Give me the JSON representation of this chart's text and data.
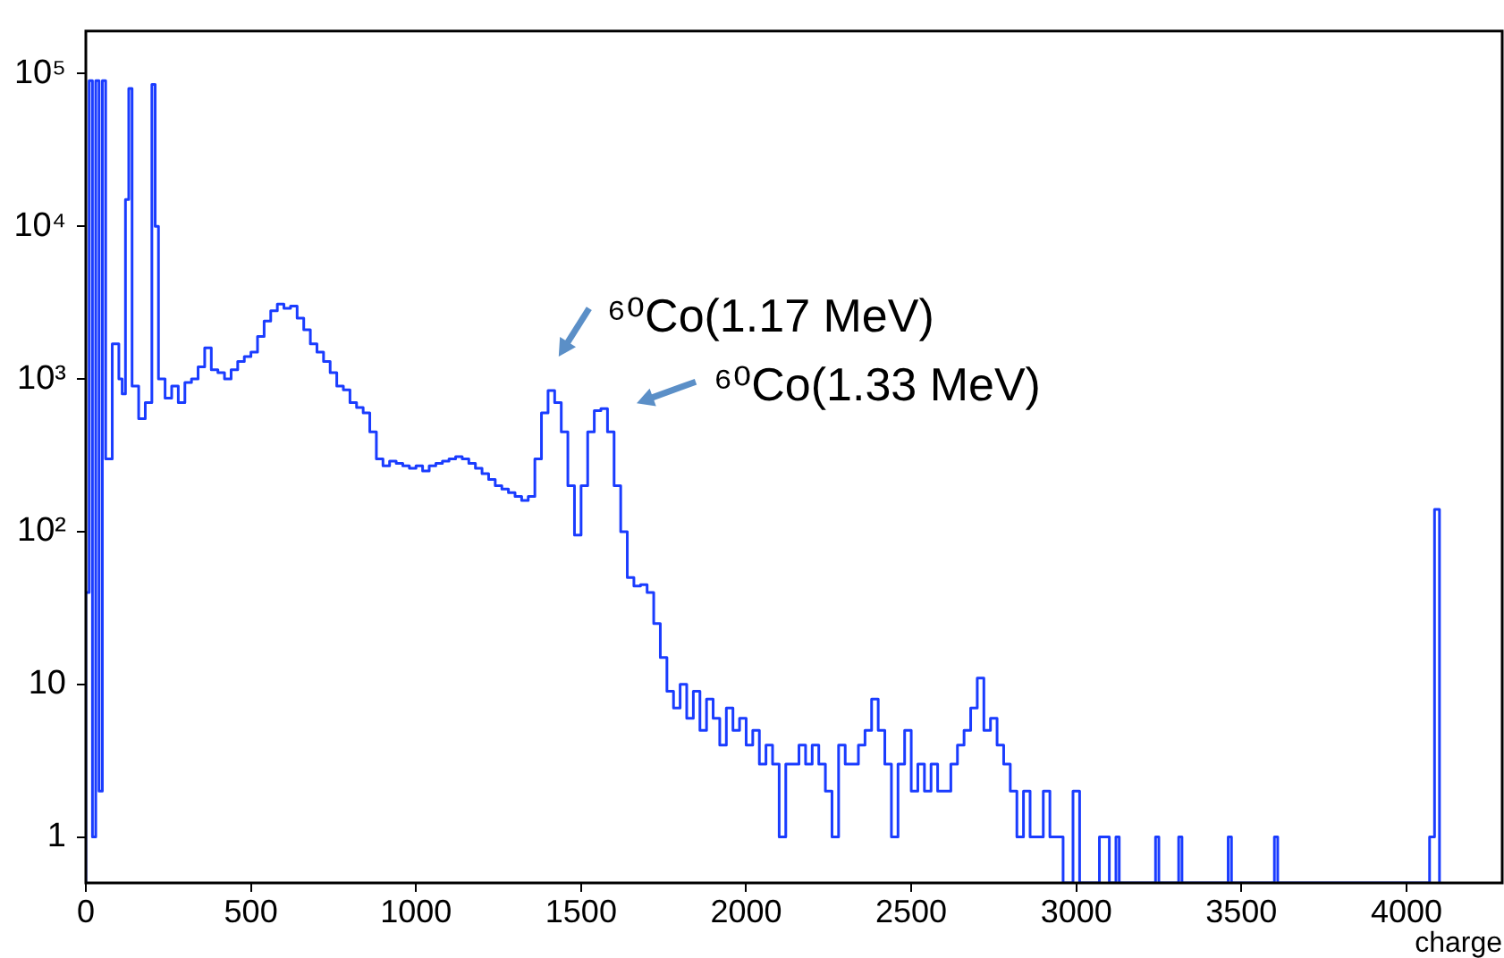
{
  "chart_data": {
    "type": "histogram",
    "xlabel": "charge",
    "color": "#1a3cff",
    "bins": [
      0,
      10,
      20,
      30,
      40,
      50,
      60,
      80,
      100,
      110,
      120,
      130,
      140,
      160,
      180,
      200,
      210,
      220,
      240,
      260,
      280,
      300,
      320,
      340,
      360,
      380,
      400,
      420,
      440,
      460,
      480,
      500,
      520,
      540,
      560,
      580,
      600,
      620,
      640,
      660,
      680,
      700,
      720,
      740,
      760,
      780,
      800,
      820,
      840,
      860,
      880,
      900,
      920,
      940,
      960,
      980,
      1000,
      1020,
      1040,
      1060,
      1080,
      1100,
      1120,
      1140,
      1160,
      1180,
      1200,
      1220,
      1240,
      1260,
      1280,
      1300,
      1320,
      1340,
      1360,
      1380,
      1400,
      1420,
      1440,
      1460,
      1480,
      1500,
      1520,
      1540,
      1560,
      1580,
      1600,
      1620,
      1640,
      1660,
      1680,
      1700,
      1720,
      1740,
      1760,
      1780,
      1800,
      1820,
      1840,
      1860,
      1880,
      1900,
      1920,
      1940,
      1960,
      1980,
      2000,
      2020,
      2040,
      2060,
      2080,
      2100,
      2120,
      2140,
      2160,
      2180,
      2200,
      2220,
      2240,
      2260,
      2280,
      2300,
      2320,
      2340,
      2360,
      2380,
      2400,
      2420,
      2440,
      2460,
      2480,
      2500,
      2520,
      2540,
      2560,
      2580,
      2600,
      2620,
      2640,
      2660,
      2680,
      2700,
      2720,
      2740,
      2760,
      2780,
      2800,
      2820,
      2840,
      2860,
      2880,
      2900,
      2920,
      2940,
      2960,
      2990,
      3010,
      3070,
      3090,
      3100,
      3120,
      3130,
      3240,
      3250,
      3310,
      3320,
      3460,
      3470,
      3600,
      3610,
      4070,
      4085,
      4100
    ],
    "values": [
      40,
      90000,
      1,
      90000,
      2,
      90000,
      300,
      1700,
      1000,
      800,
      15000,
      80000,
      900,
      550,
      700,
      85000,
      10000,
      1000,
      750,
      900,
      700,
      950,
      1000,
      1200,
      1600,
      1150,
      1100,
      1000,
      1150,
      1300,
      1400,
      1500,
      1900,
      2400,
      2800,
      3100,
      2900,
      3000,
      2500,
      2100,
      1700,
      1500,
      1300,
      1100,
      900,
      850,
      700,
      650,
      600,
      450,
      300,
      270,
      290,
      280,
      270,
      260,
      270,
      250,
      270,
      280,
      290,
      300,
      310,
      300,
      280,
      260,
      240,
      220,
      200,
      190,
      180,
      170,
      160,
      170,
      300,
      600,
      840,
      700,
      450,
      200,
      95,
      200,
      450,
      620,
      640,
      450,
      200,
      100,
      50,
      44,
      45,
      40,
      25,
      15,
      9,
      7,
      10,
      6,
      9,
      5,
      8,
      6,
      4,
      7,
      5,
      6,
      4,
      5,
      3,
      4,
      3,
      1,
      3,
      3,
      4,
      3,
      4,
      3,
      2,
      1,
      4,
      3,
      3,
      4,
      5,
      8,
      5,
      3,
      1,
      3,
      5,
      2,
      3,
      2,
      3,
      2,
      2,
      3,
      4,
      5,
      7,
      11,
      5,
      6,
      4,
      3,
      2,
      1,
      2,
      1,
      1,
      2,
      1,
      1,
      null,
      2,
      null,
      1,
      1,
      null,
      1,
      null,
      1,
      null,
      1,
      null,
      1,
      null,
      1,
      null,
      1,
      140
    ],
    "log": true,
    "xlim": [
      0,
      4290
    ],
    "ylim": [
      0.5,
      190000
    ],
    "xticks": [
      0,
      500,
      1000,
      1500,
      2000,
      2500,
      3000,
      3500,
      4000
    ],
    "yticks": [
      1,
      10,
      {
        "value": 100,
        "label": "10²"
      },
      {
        "value": 1000,
        "label": "10³"
      },
      {
        "value": 10000,
        "label": "10⁴"
      },
      {
        "value": 100000,
        "label": "10⁵"
      }
    ],
    "grid": false,
    "legend": false,
    "annotations": [
      {
        "text": "⁶⁰Co(1.17 MeV)",
        "x": 1416,
        "y": 840
      },
      {
        "text": "⁶⁰Co(1.33 MeV)",
        "x": 1560,
        "y": 640
      }
    ]
  }
}
